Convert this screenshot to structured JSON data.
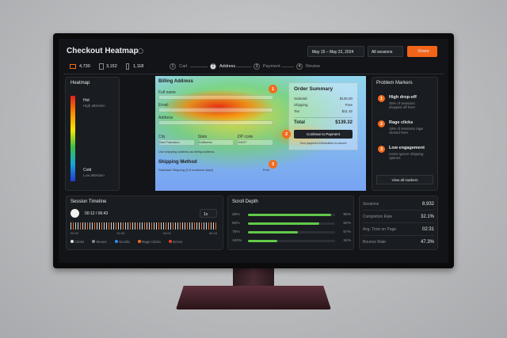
{
  "header": {
    "title": "Checkout Heatmap",
    "date_range": "May 15 – May 22, 2024",
    "segment": "All sessions",
    "share": "Share"
  },
  "devices": [
    {
      "count": "4,730"
    },
    {
      "count": "3,152"
    },
    {
      "count": "1,118"
    }
  ],
  "steps": [
    {
      "number": "1",
      "label": "Cart"
    },
    {
      "number": "2",
      "label": "Address"
    },
    {
      "number": "3",
      "label": "Payment"
    },
    {
      "number": "4",
      "label": "Review"
    }
  ],
  "heatmap_panel": {
    "title": "Heatmap",
    "hot": "Hot",
    "hot_note": "High attention",
    "cold": "Cold",
    "cold_note": "Low attention"
  },
  "form": {
    "billing_title": "Billing Address",
    "fields": [
      {
        "label": "Full name"
      },
      {
        "label": "Email"
      },
      {
        "label": "Address"
      }
    ],
    "city_row": [
      {
        "label": "City",
        "value": "San Francisco"
      },
      {
        "label": "State",
        "value": "California"
      },
      {
        "label": "ZIP code",
        "value": "94107"
      }
    ],
    "checkbox": "Use shipping address as billing address",
    "shipping_title": "Shipping Method",
    "shipping_option": "Standard Shipping (3-5 business days)",
    "shipping_price": "Free"
  },
  "order_summary": {
    "title": "Order Summary",
    "lines": [
      {
        "label": "Subtotal",
        "amount": "$128.00"
      },
      {
        "label": "Shipping",
        "amount": "Free"
      },
      {
        "label": "Tax",
        "amount": "$11.32"
      }
    ],
    "total_label": "Total",
    "total": "$139.32",
    "button": "Continue to Payment",
    "secure_note": "Your payment information is secure"
  },
  "hotspots": [
    "1",
    "2",
    "3"
  ],
  "problem_markers": {
    "title": "Problem Markers",
    "items": [
      {
        "number": "1",
        "title": "High drop-off",
        "detail": "35% of sessions dropped off here"
      },
      {
        "number": "2",
        "title": "Rage clicks",
        "detail": "18% of sessions rage clicked here"
      },
      {
        "number": "3",
        "title": "Low engagement",
        "detail": "Users ignore shipping options"
      }
    ],
    "view_all": "View all markers"
  },
  "timeline": {
    "title": "Session Timeline",
    "time": "00:12 / 06:43",
    "speed": "1x",
    "ticks": [
      "00:00",
      "02:00",
      "04:00",
      "06:43"
    ],
    "legend": [
      "Clicks",
      "Moves",
      "Scrolls",
      "Rage Clicks",
      "Errors"
    ]
  },
  "scroll_depth": {
    "title": "Scroll Depth",
    "rows": [
      {
        "depth": "25%",
        "reached": 95,
        "reached_label": "95%"
      },
      {
        "depth": "50%",
        "reached": 82,
        "reached_label": "82%"
      },
      {
        "depth": "75%",
        "reached": 57,
        "reached_label": "57%"
      },
      {
        "depth": "100%",
        "reached": 34,
        "reached_label": "34%"
      }
    ]
  },
  "stats": [
    {
      "label": "Sessions",
      "value": "8,932"
    },
    {
      "label": "Completion Rate",
      "value": "32.1%"
    },
    {
      "label": "Avg. Time on Page",
      "value": "02:31"
    },
    {
      "label": "Bounce Rate",
      "value": "47.3%"
    }
  ]
}
